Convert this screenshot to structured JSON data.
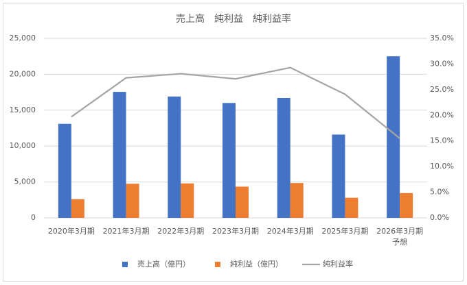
{
  "chart_data": {
    "type": "bar",
    "title": "売上高　純利益　純利益率",
    "categories": [
      "2020年3月期",
      "2021年3月期",
      "2022年3月期",
      "2023年3月期",
      "2024年3月期",
      "2025年3月期",
      "2026年3月期\n予想"
    ],
    "series": [
      {
        "name": "売上高（億円）",
        "type": "bar",
        "color": "#4472c4",
        "values": [
          13100,
          17550,
          16900,
          16000,
          16700,
          11600,
          22500
        ]
      },
      {
        "name": "純利益（億円）",
        "type": "bar",
        "color": "#ed7d31",
        "values": [
          2600,
          4750,
          4800,
          4350,
          4850,
          2800,
          3450
        ]
      },
      {
        "name": "純利益率",
        "type": "line",
        "axis": "y2",
        "color": "#a5a5a5",
        "values": [
          19.7,
          27.3,
          28.1,
          27.1,
          29.3,
          24.1,
          15.5
        ]
      }
    ],
    "ylim": [
      0,
      25000
    ],
    "yticks": [
      0,
      {
        "value": 5000,
        "label": "5,000"
      },
      {
        "value": 10000,
        "label": "10,000"
      },
      {
        "value": 15000,
        "label": "15,000"
      },
      {
        "value": 20000,
        "label": "20,000"
      },
      {
        "value": 25000,
        "label": "25,000"
      }
    ],
    "y2lim": [
      0,
      35
    ],
    "y2ticks": [
      {
        "value": 0,
        "label": "0.0%"
      },
      {
        "value": 5,
        "label": "5.0%"
      },
      {
        "value": 10,
        "label": "10.0%"
      },
      {
        "value": 15,
        "label": "15.0%"
      },
      {
        "value": 20,
        "label": "20.0%"
      },
      {
        "value": 25,
        "label": "25.0%"
      },
      {
        "value": 30,
        "label": "30.0%"
      },
      {
        "value": 35,
        "label": "35.0%"
      }
    ],
    "grid": true,
    "legend": "bottom"
  }
}
